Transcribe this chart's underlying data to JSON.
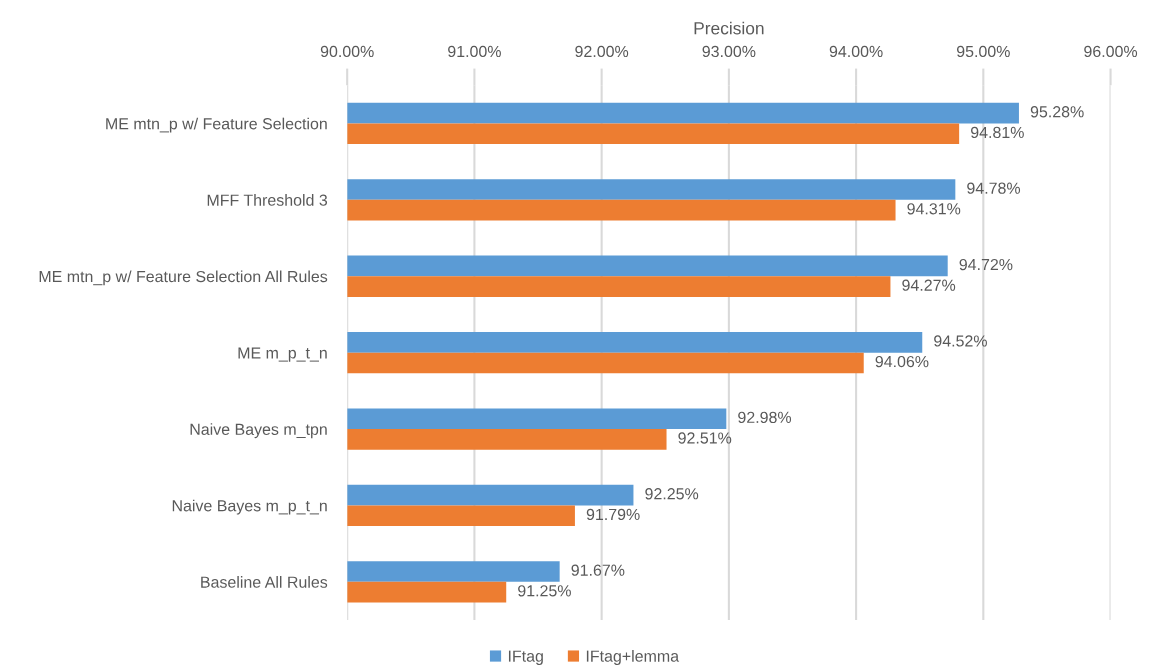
{
  "chart_data": {
    "type": "bar",
    "orientation": "horizontal",
    "xlabel": "Precision",
    "categories": [
      "ME mtn_p w/ Feature Selection",
      "MFF Threshold 3",
      "ME mtn_p w/ Feature Selection All Rules",
      "ME m_p_t_n",
      "Naive Bayes m_tpn",
      "Naive Bayes m_p_t_n",
      "Baseline All Rules"
    ],
    "series": [
      {
        "name": "IFtag",
        "color": "#5b9bd5",
        "values": [
          95.28,
          94.78,
          94.72,
          94.52,
          92.98,
          92.25,
          91.67
        ],
        "value_labels": [
          "95.28%",
          "94.78%",
          "94.72%",
          "94.52%",
          "92.98%",
          "92.25%",
          "91.67%"
        ]
      },
      {
        "name": "IFtag+lemma",
        "color": "#ed7d31",
        "values": [
          94.81,
          94.31,
          94.27,
          94.06,
          92.51,
          91.79,
          91.25
        ],
        "value_labels": [
          "94.81%",
          "94.31%",
          "94.27%",
          "94.06%",
          "92.51%",
          "91.79%",
          "91.25%"
        ]
      }
    ],
    "xlim": [
      90,
      96
    ],
    "xticks": [
      {
        "value": 90,
        "label": "90.00%"
      },
      {
        "value": 91,
        "label": "91.00%"
      },
      {
        "value": 92,
        "label": "92.00%"
      },
      {
        "value": 93,
        "label": "93.00%"
      },
      {
        "value": 94,
        "label": "94.00%"
      },
      {
        "value": 95,
        "label": "95.00%"
      },
      {
        "value": 96,
        "label": "96.00%"
      }
    ],
    "grid": "x",
    "legend": "bottom"
  }
}
